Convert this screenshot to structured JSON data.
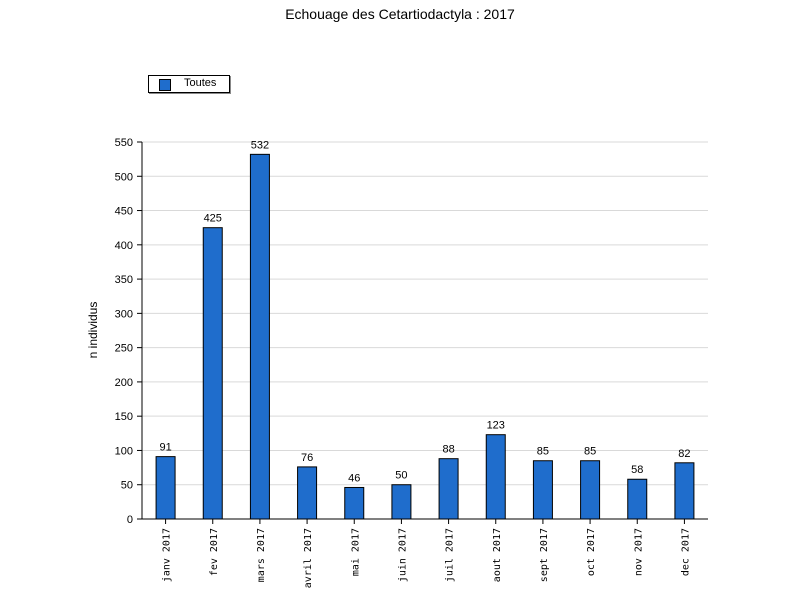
{
  "chart_data": {
    "type": "bar",
    "title": "Echouage des Cetartiodactyla : 2017",
    "xlabel": "",
    "ylabel": "n individus",
    "ylim": [
      0,
      550
    ],
    "yticks": [
      0,
      50,
      100,
      150,
      200,
      250,
      300,
      350,
      400,
      450,
      500,
      550
    ],
    "grid": true,
    "legend_position": "top-left",
    "categories": [
      "janv 2017",
      "fev 2017",
      "mars 2017",
      "avril 2017",
      "mai 2017",
      "juin 2017",
      "juil 2017",
      "aout 2017",
      "sept 2017",
      "oct 2017",
      "nov 2017",
      "dec 2017"
    ],
    "series": [
      {
        "name": "Toutes",
        "values": [
          91,
          425,
          532,
          76,
          46,
          50,
          88,
          123,
          85,
          85,
          58,
          82
        ],
        "color": "#1f6dcc"
      }
    ],
    "grid_color": "#d9d9d9",
    "axis_color": "#000000"
  }
}
